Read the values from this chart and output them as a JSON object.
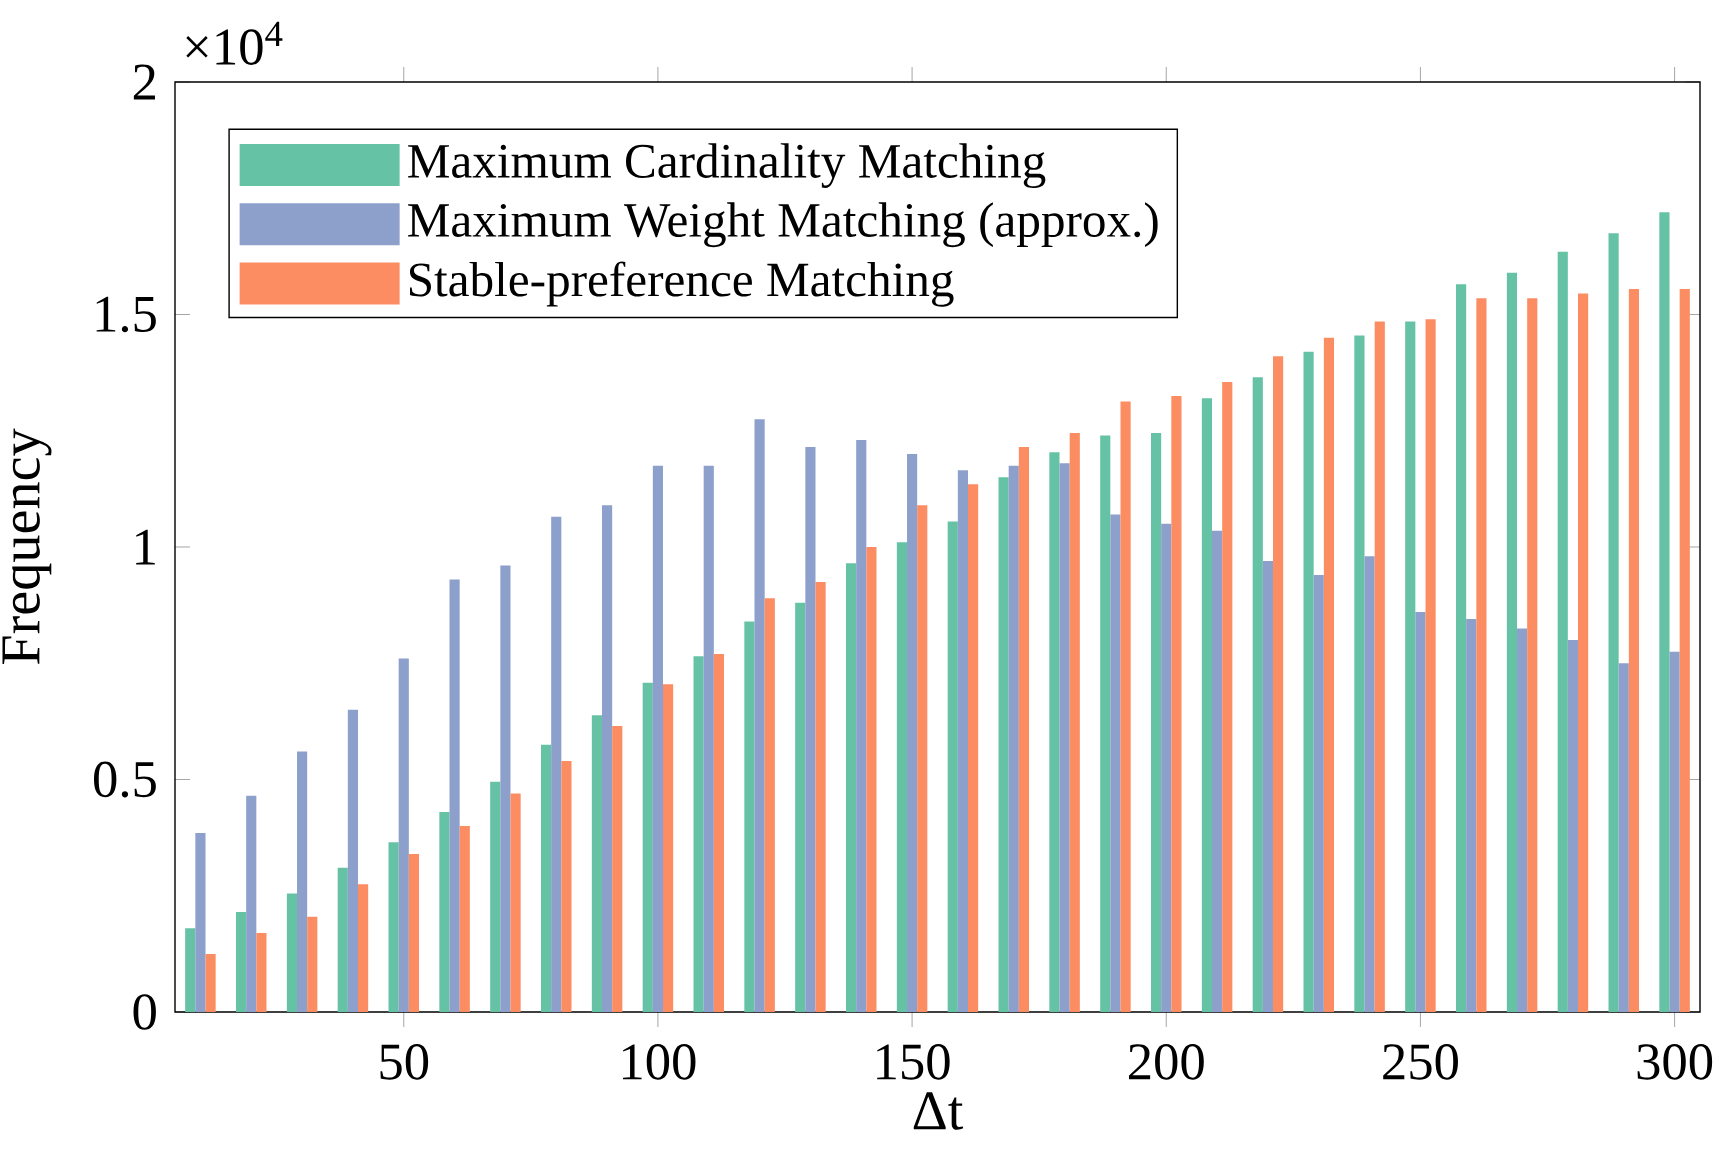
{
  "chart_data": {
    "type": "bar",
    "xlabel": "Δt",
    "ylabel": "Frequency",
    "annotations": [
      "×10$^{4}$"
    ],
    "x": [
      10,
      20,
      30,
      40,
      50,
      60,
      70,
      80,
      90,
      100,
      110,
      120,
      130,
      140,
      150,
      160,
      170,
      180,
      190,
      200,
      210,
      220,
      230,
      240,
      250,
      260,
      270,
      280,
      290,
      300
    ],
    "series": [
      {
        "name": "Maximum Cardinality Matching",
        "color": "#66c2a5",
        "values": [
          0.18,
          0.215,
          0.255,
          0.31,
          0.365,
          0.43,
          0.495,
          0.575,
          0.638,
          0.708,
          0.765,
          0.84,
          0.88,
          0.965,
          1.01,
          1.055,
          1.15,
          1.204,
          1.24,
          1.245,
          1.32,
          1.365,
          1.42,
          1.455,
          1.485,
          1.565,
          1.59,
          1.635,
          1.675,
          1.72
        ]
      },
      {
        "name": "Maximum Weight Matching (approx.)",
        "color": "#8da0cb",
        "values": [
          0.385,
          0.465,
          0.56,
          0.65,
          0.76,
          0.93,
          0.96,
          1.065,
          1.09,
          1.175,
          1.175,
          1.275,
          1.215,
          1.23,
          1.2,
          1.165,
          1.175,
          1.18,
          1.07,
          1.05,
          1.035,
          0.97,
          0.94,
          0.98,
          0.86,
          0.845,
          0.825,
          0.8,
          0.75,
          0.775
        ]
      },
      {
        "name": "Stable-preference Matching",
        "color": "#fc8d62",
        "values": [
          0.125,
          0.17,
          0.205,
          0.275,
          0.34,
          0.4,
          0.47,
          0.54,
          0.615,
          0.705,
          0.77,
          0.89,
          0.925,
          1.0,
          1.09,
          1.135,
          1.215,
          1.245,
          1.313,
          1.325,
          1.355,
          1.41,
          1.45,
          1.485,
          1.49,
          1.535,
          1.535,
          1.545,
          1.555,
          1.555
        ]
      }
    ],
    "xlim": [
      5,
      305
    ],
    "ylim": [
      0,
      2
    ],
    "xticks": [
      50,
      100,
      150,
      200,
      250,
      300
    ],
    "yticks": [
      0,
      0.5,
      1,
      1.5,
      2
    ],
    "legend": "top left",
    "grid": false
  }
}
